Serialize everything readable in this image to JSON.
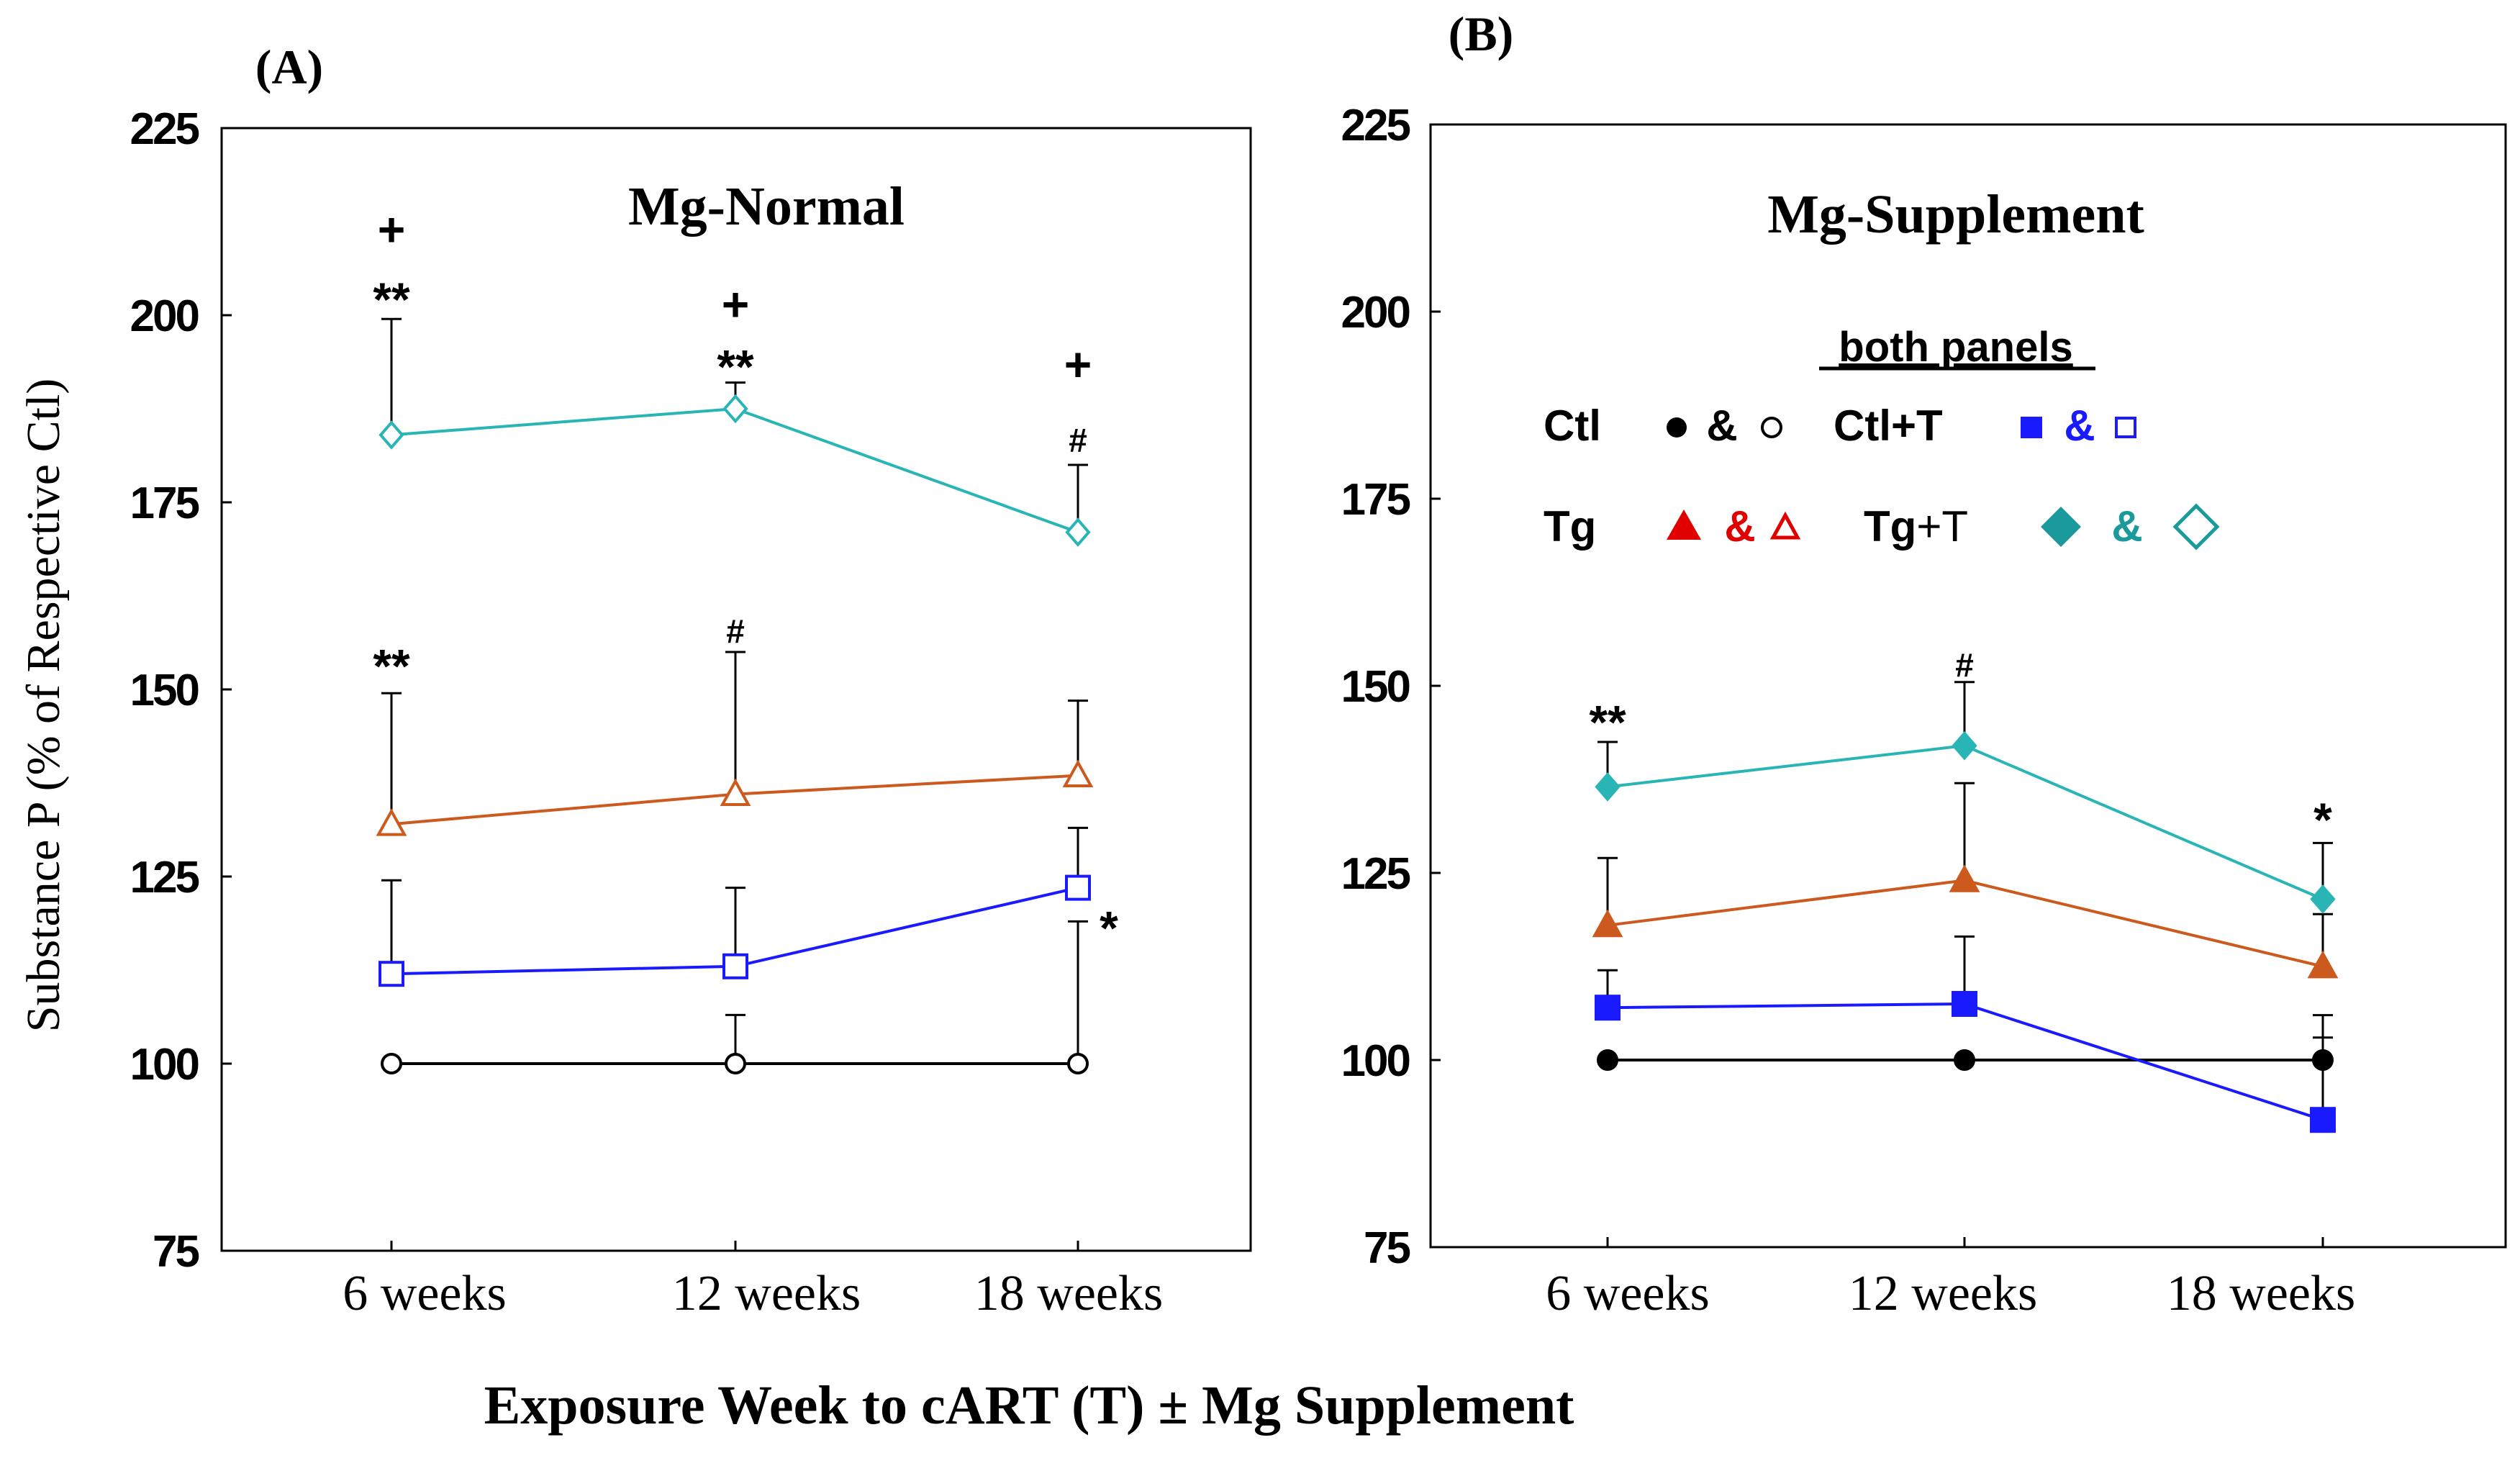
{
  "figure": {
    "xlabel": "Exposure Week to cART (T) ± Mg Supplement",
    "ylabel": "Substance P (% of Respective Ctl)"
  },
  "legend": {
    "title": "both panels",
    "entries": [
      {
        "label": "Ctl",
        "amp": "&",
        "color": "#000000",
        "filled_shape": "circle",
        "open_shape": "circle"
      },
      {
        "label": "Ctl+T",
        "amp": "&",
        "color": "#1a1aff",
        "filled_shape": "square",
        "open_shape": "square"
      },
      {
        "label": "Tg",
        "amp": "&",
        "color": "#e00000",
        "filled_shape": "triangle",
        "open_shape": "triangle"
      },
      {
        "label_main": "Tg",
        "label_suffix": "+T",
        "amp": "&",
        "color": "#1a9a9a",
        "filled_shape": "diamond",
        "open_shape": "diamond"
      }
    ]
  },
  "chart_data": [
    {
      "type": "line",
      "panel_label": "(A)",
      "title": "Mg-Normal",
      "categories": [
        "6 weeks",
        "12 weeks",
        "18 weeks"
      ],
      "ylim": [
        75,
        225
      ],
      "yticks": [
        "75",
        "100",
        "125",
        "150",
        "175",
        "200",
        "225"
      ],
      "marker_fill": "open",
      "series": [
        {
          "name": "Ctl",
          "color": "#000000",
          "marker": "circle",
          "values": [
            100,
            100,
            100
          ],
          "err_up": [
            0,
            6.5,
            19
          ]
        },
        {
          "name": "Ctl+T",
          "color": "#1a1aff",
          "marker": "square",
          "values": [
            112,
            113,
            123.5
          ],
          "err_up": [
            12.5,
            10.5,
            8
          ]
        },
        {
          "name": "Tg",
          "color": "#cc5a1e",
          "marker": "triangle",
          "values": [
            132,
            136,
            138.5
          ],
          "err_up": [
            17.5,
            19,
            10
          ]
        },
        {
          "name": "Tg+T",
          "color": "#29b5b5",
          "marker": "diamond",
          "values": [
            184,
            187.5,
            171
          ],
          "err_up": [
            15.5,
            3.5,
            9
          ]
        }
      ],
      "annotations": [
        {
          "text": "+",
          "x": 0,
          "y": 211
        },
        {
          "text": "**",
          "x": 0,
          "y": 203
        },
        {
          "text": "**",
          "x": 0,
          "y": 154
        },
        {
          "text": "+",
          "x": 1,
          "y": 201
        },
        {
          "text": "**",
          "x": 1,
          "y": 194
        },
        {
          "text": "#",
          "x": 1,
          "y": 158
        },
        {
          "text": "+",
          "x": 2,
          "y": 193
        },
        {
          "text": "#",
          "x": 2,
          "y": 183.5
        },
        {
          "text": "*",
          "x": 2.09,
          "y": 119
        }
      ]
    },
    {
      "type": "line",
      "panel_label": "(B)",
      "title": "Mg-Supplement",
      "categories": [
        "6 weeks",
        "12 weeks",
        "18 weeks"
      ],
      "ylim": [
        75,
        225
      ],
      "yticks": [
        "75",
        "100",
        "125",
        "150",
        "175",
        "200",
        "225"
      ],
      "marker_fill": "filled",
      "series": [
        {
          "name": "Ctl",
          "color": "#000000",
          "marker": "circle",
          "values": [
            100,
            100,
            100
          ],
          "err_up": [
            0,
            0,
            6
          ]
        },
        {
          "name": "Ctl+T",
          "color": "#1a1aff",
          "marker": "square",
          "values": [
            107,
            107.5,
            92
          ],
          "err_up": [
            5,
            9,
            11
          ]
        },
        {
          "name": "Tg",
          "color": "#cc5a1e",
          "marker": "triangle",
          "values": [
            118,
            124,
            112.5
          ],
          "err_up": [
            9,
            13,
            7
          ]
        },
        {
          "name": "Tg+T",
          "color": "#29b5b5",
          "marker": "diamond",
          "values": [
            136.5,
            142,
            121.5
          ],
          "err_up": [
            6,
            8.5,
            7.5
          ]
        }
      ],
      "annotations": [
        {
          "text": "**",
          "x": 0,
          "y": 146
        },
        {
          "text": "#",
          "x": 1,
          "y": 153
        },
        {
          "text": "*",
          "x": 2,
          "y": 133
        }
      ]
    }
  ]
}
